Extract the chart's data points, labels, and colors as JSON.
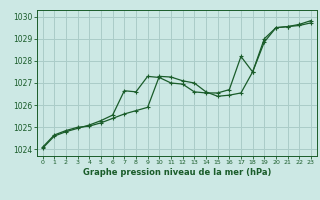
{
  "title": "Graphe pression niveau de la mer (hPa)",
  "background_color": "#cce8e4",
  "grid_color": "#aaccc8",
  "line_color": "#1a5c2a",
  "xlim": [
    -0.5,
    23.5
  ],
  "ylim": [
    1023.7,
    1030.3
  ],
  "yticks": [
    1024,
    1025,
    1026,
    1027,
    1028,
    1029,
    1030
  ],
  "xticks": [
    0,
    1,
    2,
    3,
    4,
    5,
    6,
    7,
    8,
    9,
    10,
    11,
    12,
    13,
    14,
    15,
    16,
    17,
    18,
    19,
    20,
    21,
    22,
    23
  ],
  "series1_x": [
    0,
    1,
    2,
    3,
    4,
    5,
    6,
    7,
    8,
    9,
    10,
    11,
    12,
    13,
    14,
    15,
    16,
    17,
    18,
    19,
    20,
    21,
    22,
    23
  ],
  "series1_y": [
    1024.1,
    1024.65,
    1024.85,
    1025.0,
    1025.05,
    1025.2,
    1025.4,
    1025.6,
    1025.75,
    1025.9,
    1027.3,
    1027.27,
    1027.1,
    1027.0,
    1026.6,
    1026.4,
    1026.45,
    1026.55,
    1027.5,
    1029.0,
    1029.5,
    1029.55,
    1029.65,
    1029.82
  ],
  "series2_x": [
    0,
    1,
    2,
    3,
    4,
    5,
    6,
    7,
    8,
    9,
    10,
    11,
    12,
    13,
    14,
    15,
    16,
    17,
    18,
    19,
    20,
    21,
    22,
    23
  ],
  "series2_y": [
    1024.05,
    1024.6,
    1024.8,
    1024.95,
    1025.1,
    1025.3,
    1025.55,
    1026.65,
    1026.6,
    1027.3,
    1027.25,
    1027.0,
    1026.95,
    1026.6,
    1026.55,
    1026.55,
    1026.7,
    1028.2,
    1027.5,
    1028.85,
    1029.5,
    1029.55,
    1029.6,
    1029.72
  ]
}
